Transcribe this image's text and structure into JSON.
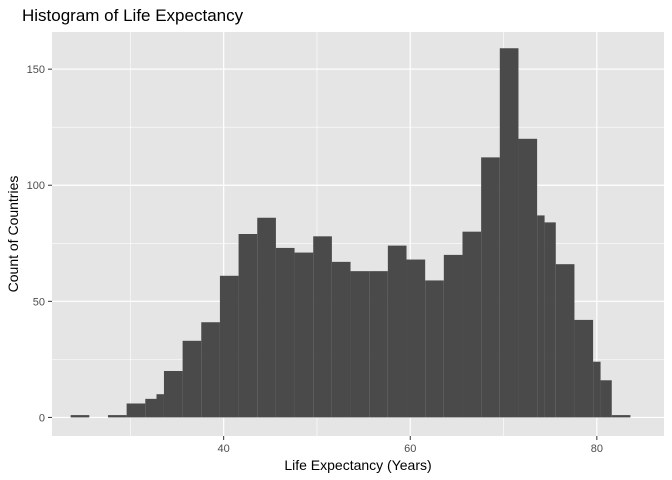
{
  "chart_data": {
    "type": "histogram",
    "title": "Histogram of Life Expectancy",
    "xlabel": "Life Expectancy (Years)",
    "ylabel": "Count of Countries",
    "xlim": [
      21.6,
      87.2
    ],
    "ylim": [
      -8,
      166
    ],
    "x_ticks": [
      40,
      60,
      80
    ],
    "x_tick_labels": [
      "40",
      "60",
      "80"
    ],
    "y_ticks": [
      0,
      50,
      100,
      150
    ],
    "y_tick_labels": [
      "0",
      "50",
      "100",
      "150"
    ],
    "bins": [
      {
        "start": 23.6,
        "end": 25.6,
        "count": 1
      },
      {
        "start": 27.6,
        "end": 29.6,
        "count": 1
      },
      {
        "start": 29.6,
        "end": 31.6,
        "count": 6
      },
      {
        "start": 31.6,
        "end": 32.8,
        "count": 8
      },
      {
        "start": 32.8,
        "end": 33.6,
        "count": 10
      },
      {
        "start": 33.6,
        "end": 35.6,
        "count": 20
      },
      {
        "start": 35.6,
        "end": 37.6,
        "count": 33
      },
      {
        "start": 37.6,
        "end": 39.6,
        "count": 41
      },
      {
        "start": 39.6,
        "end": 41.6,
        "count": 61
      },
      {
        "start": 41.6,
        "end": 43.6,
        "count": 79
      },
      {
        "start": 43.6,
        "end": 45.6,
        "count": 86
      },
      {
        "start": 45.6,
        "end": 47.6,
        "count": 73
      },
      {
        "start": 47.6,
        "end": 49.6,
        "count": 71
      },
      {
        "start": 49.6,
        "end": 51.6,
        "count": 78
      },
      {
        "start": 51.6,
        "end": 53.6,
        "count": 67
      },
      {
        "start": 53.6,
        "end": 55.6,
        "count": 63
      },
      {
        "start": 55.6,
        "end": 57.6,
        "count": 63
      },
      {
        "start": 57.6,
        "end": 59.6,
        "count": 74
      },
      {
        "start": 59.6,
        "end": 61.6,
        "count": 68
      },
      {
        "start": 61.6,
        "end": 63.6,
        "count": 59
      },
      {
        "start": 63.6,
        "end": 65.6,
        "count": 70
      },
      {
        "start": 65.6,
        "end": 67.6,
        "count": 80
      },
      {
        "start": 67.6,
        "end": 69.6,
        "count": 112
      },
      {
        "start": 69.6,
        "end": 71.6,
        "count": 159
      },
      {
        "start": 71.6,
        "end": 73.6,
        "count": 120
      },
      {
        "start": 73.6,
        "end": 74.4,
        "count": 87
      },
      {
        "start": 74.4,
        "end": 75.6,
        "count": 84
      },
      {
        "start": 75.6,
        "end": 77.6,
        "count": 66
      },
      {
        "start": 77.6,
        "end": 79.6,
        "count": 42
      },
      {
        "start": 79.6,
        "end": 80.4,
        "count": 24
      },
      {
        "start": 80.4,
        "end": 81.6,
        "count": 16
      },
      {
        "start": 81.6,
        "end": 83.6,
        "count": 1
      }
    ],
    "colors": {
      "panel": "#e5e5e5",
      "grid_major": "#ffffff",
      "bar": "#4a4a4a",
      "tick": "#333333"
    }
  }
}
